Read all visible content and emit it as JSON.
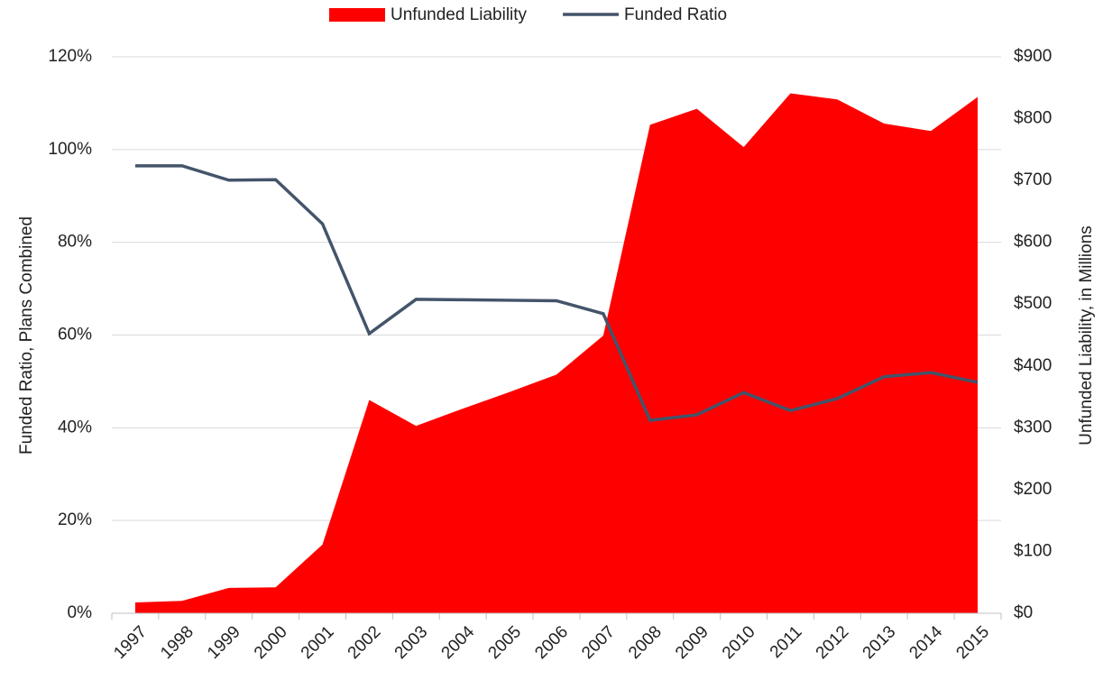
{
  "chart_data": {
    "type": "area-line",
    "categories": [
      "1997",
      "1998",
      "1999",
      "2000",
      "2001",
      "2002",
      "2003",
      "2004",
      "2005",
      "2006",
      "2007",
      "2008",
      "2009",
      "2010",
      "2011",
      "2012",
      "2013",
      "2014",
      "2015"
    ],
    "series": [
      {
        "name": "Unfunded Liability",
        "color": "#ff0000",
        "axis": "y2",
        "kind": "area",
        "values": [
          17.5,
          20,
          41,
          42,
          111,
          345,
          303,
          331,
          358,
          386,
          449,
          790,
          816,
          754,
          841,
          831,
          792,
          780,
          835
        ]
      },
      {
        "name": "Funded Ratio",
        "color": "#44546a",
        "axis": "y",
        "kind": "line",
        "values": [
          96.5,
          96.5,
          93.4,
          93.5,
          84.0,
          60.3,
          67.7,
          67.6,
          67.5,
          67.4,
          64.6,
          41.6,
          42.8,
          47.6,
          43.7,
          46.3,
          51.0,
          51.9,
          49.8
        ]
      }
    ],
    "ylabel": "Funded Ratio, Plans Combined",
    "y2label": "Unfunded Liability, in Millions",
    "ylim": [
      0,
      120
    ],
    "yticks": [
      {
        "value": 0,
        "label": "0%"
      },
      {
        "value": 20,
        "label": "20%"
      },
      {
        "value": 40,
        "label": "40%"
      },
      {
        "value": 60,
        "label": "60%"
      },
      {
        "value": 80,
        "label": "80%"
      },
      {
        "value": 100,
        "label": "100%"
      },
      {
        "value": 120,
        "label": "120%"
      }
    ],
    "y2lim": [
      0,
      900
    ],
    "y2ticks": [
      {
        "value": 0,
        "label": "$0"
      },
      {
        "value": 100,
        "label": "$100"
      },
      {
        "value": 200,
        "label": "$200"
      },
      {
        "value": 300,
        "label": "$300"
      },
      {
        "value": 400,
        "label": "$400"
      },
      {
        "value": 500,
        "label": "$500"
      },
      {
        "value": 600,
        "label": "$600"
      },
      {
        "value": 700,
        "label": "$700"
      },
      {
        "value": 800,
        "label": "$800"
      },
      {
        "value": 900,
        "label": "$900"
      }
    ],
    "grid": true,
    "legend": "top"
  }
}
